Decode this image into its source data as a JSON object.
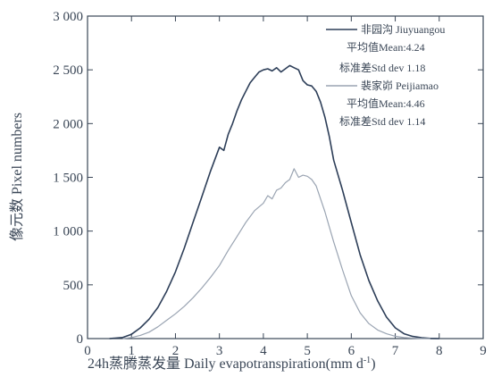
{
  "chart_data": {
    "type": "line",
    "xlabel": "24h蒸腾蒸发量 Daily evapotranspiration(mm d",
    "xlabel_sup": "-1",
    "xlabel_tail": ")",
    "ylabel": "像元数 Pixel numbers",
    "xlim": [
      0,
      9
    ],
    "ylim": [
      0,
      3000
    ],
    "x_ticks": [
      0,
      1,
      2,
      3,
      4,
      5,
      6,
      7,
      8,
      9
    ],
    "x_tick_labels": [
      "0",
      "1",
      "2",
      "3",
      "4",
      "5",
      "6",
      "7",
      "8",
      "9"
    ],
    "y_ticks": [
      0,
      500,
      1000,
      1500,
      2000,
      2500,
      3000
    ],
    "y_tick_labels": [
      "0",
      "500",
      "1 000",
      "1 500",
      "2 000",
      "2 500",
      "3 000"
    ],
    "grid": false,
    "legend_position": "top-right",
    "series": [
      {
        "name": "非园沟 Jiuyuangou",
        "stats": [
          "平均值Mean:4.24",
          "标准差Std dev 1.18"
        ],
        "color": "#2d3e58",
        "x": [
          0.5,
          0.8,
          1.0,
          1.2,
          1.4,
          1.6,
          1.8,
          2.0,
          2.2,
          2.4,
          2.6,
          2.8,
          3.0,
          3.1,
          3.2,
          3.3,
          3.4,
          3.5,
          3.6,
          3.7,
          3.8,
          3.9,
          4.0,
          4.1,
          4.2,
          4.3,
          4.4,
          4.5,
          4.6,
          4.7,
          4.8,
          4.9,
          5.0,
          5.1,
          5.2,
          5.3,
          5.4,
          5.5,
          5.6,
          5.8,
          6.0,
          6.2,
          6.4,
          6.6,
          6.8,
          7.0,
          7.2,
          7.4,
          7.6,
          7.8,
          8.0
        ],
        "y": [
          0,
          10,
          40,
          100,
          180,
          290,
          440,
          620,
          840,
          1080,
          1320,
          1560,
          1780,
          1750,
          1900,
          2000,
          2120,
          2220,
          2300,
          2380,
          2430,
          2480,
          2500,
          2510,
          2490,
          2520,
          2480,
          2510,
          2540,
          2520,
          2500,
          2400,
          2360,
          2350,
          2300,
          2200,
          2060,
          1880,
          1660,
          1380,
          1080,
          780,
          540,
          350,
          200,
          100,
          45,
          20,
          8,
          2,
          0
        ]
      },
      {
        "name": "裴家峁 Peijiamao",
        "stats": [
          "平均值Mean:4.46",
          "标准差Std dev 1.14"
        ],
        "color": "#9aa4b2",
        "x": [
          0.8,
          1.0,
          1.2,
          1.4,
          1.6,
          1.8,
          2.0,
          2.2,
          2.4,
          2.6,
          2.8,
          3.0,
          3.2,
          3.4,
          3.6,
          3.8,
          4.0,
          4.1,
          4.2,
          4.3,
          4.4,
          4.5,
          4.6,
          4.7,
          4.8,
          4.9,
          5.0,
          5.1,
          5.2,
          5.3,
          5.4,
          5.5,
          5.6,
          5.8,
          6.0,
          6.2,
          6.4,
          6.6,
          6.8,
          7.0,
          7.2,
          7.4,
          7.6,
          7.8
        ],
        "y": [
          0,
          10,
          30,
          60,
          110,
          170,
          230,
          300,
          380,
          470,
          570,
          680,
          820,
          950,
          1080,
          1190,
          1260,
          1330,
          1300,
          1380,
          1400,
          1450,
          1480,
          1580,
          1500,
          1520,
          1510,
          1480,
          1420,
          1300,
          1180,
          1040,
          900,
          640,
          400,
          240,
          140,
          80,
          45,
          22,
          10,
          4,
          1,
          0
        ]
      }
    ]
  }
}
